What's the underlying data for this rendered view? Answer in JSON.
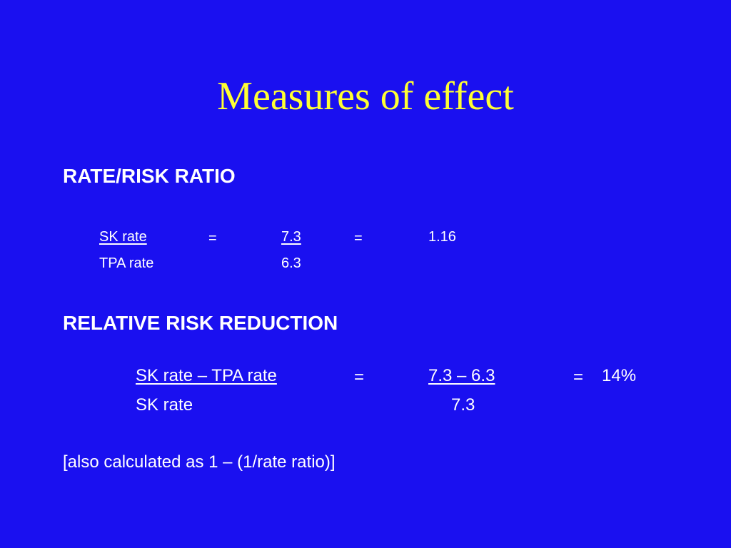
{
  "slide": {
    "title": "Measures of effect",
    "section1": {
      "heading": "RATE/RISK RATIO",
      "row1": {
        "label": "SK rate",
        "eq1": "=",
        "value": "7.3",
        "eq2": "=",
        "result": "1.16"
      },
      "row2": {
        "label": "TPA rate",
        "value": "6.3"
      }
    },
    "section2": {
      "heading": "RELATIVE RISK REDUCTION",
      "row1": {
        "label": "SK rate – TPA rate",
        "eq1": "=",
        "value": "7.3 – 6.3",
        "eq2": "=",
        "result": "14%"
      },
      "row2": {
        "label": "SK rate",
        "value": "7.3"
      }
    },
    "note": "[also calculated as 1 – (1/rate ratio)]"
  }
}
